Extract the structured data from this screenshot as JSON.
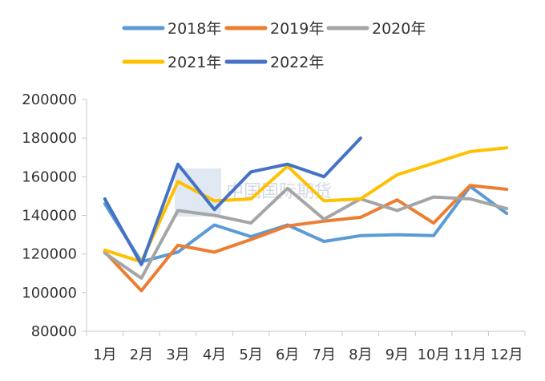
{
  "chart_data": {
    "type": "line",
    "categories": [
      "1月",
      "2月",
      "3月",
      "4月",
      "5月",
      "6月",
      "7月",
      "8月",
      "9月",
      "10月",
      "11月",
      "12月"
    ],
    "ylim": [
      80000,
      200000
    ],
    "yticks": [
      80000,
      100000,
      120000,
      140000,
      160000,
      180000,
      200000
    ],
    "grid": false,
    "legend_position": "top",
    "series": [
      {
        "name": "2018年",
        "color": "#5b9bd5",
        "values": [
          146000,
          116000,
          121000,
          135000,
          129000,
          135000,
          126500,
          129500,
          130000,
          129500,
          155000,
          141000
        ]
      },
      {
        "name": "2019年",
        "color": "#ed7d31",
        "values": [
          121000,
          101000,
          124500,
          121000,
          127500,
          134500,
          137000,
          139000,
          148000,
          136000,
          155500,
          153500
        ]
      },
      {
        "name": "2020年",
        "color": "#a5a5a5",
        "values": [
          120500,
          107500,
          142500,
          140000,
          136000,
          154000,
          138000,
          148500,
          142500,
          149500,
          148500,
          143500
        ]
      },
      {
        "name": "2021年",
        "color": "#ffc000",
        "values": [
          122000,
          116000,
          157500,
          147500,
          148500,
          165500,
          147500,
          148500,
          161000,
          167000,
          173000,
          175000
        ]
      },
      {
        "name": "2022年",
        "color": "#4472c4",
        "values": [
          148500,
          114500,
          166500,
          143000,
          162500,
          166500,
          160000,
          180000,
          null,
          null,
          null,
          null
        ]
      }
    ]
  },
  "watermark": "中国国际期货"
}
